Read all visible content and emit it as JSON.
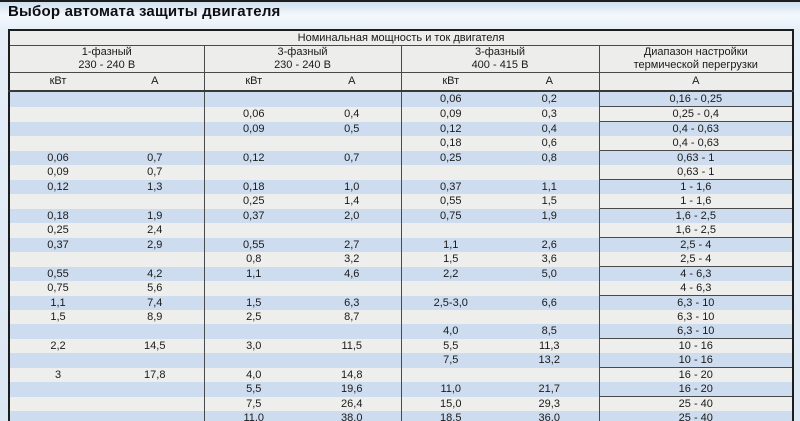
{
  "title": "Выбор автомата защиты двигателя",
  "table": {
    "top_header": "Номинальная мощность и ток двигателя",
    "groups": [
      {
        "label": "1-фазный",
        "voltage": "230 - 240 В"
      },
      {
        "label": "3-фазный",
        "voltage": "230 - 240 В"
      },
      {
        "label": "3-фазный",
        "voltage": "400 - 415 В"
      }
    ],
    "range_header": {
      "line1": "Диапазон настройки",
      "line2": "термической перегрузки"
    },
    "units": {
      "power": "кВт",
      "current": "А",
      "range": "А"
    },
    "columns_per_group": [
      "кВт",
      "А"
    ],
    "rows": [
      [
        "",
        "",
        "",
        "",
        "0,06",
        "0,2",
        "0,16 - 0,25"
      ],
      [
        "",
        "",
        "0,06",
        "0,4",
        "0,09",
        "0,3",
        "0,25 - 0,4"
      ],
      [
        "",
        "",
        "0,09",
        "0,5",
        "0,12",
        "0,4",
        "0,4 - 0,63"
      ],
      [
        "",
        "",
        "",
        "",
        "0,18",
        "0,6",
        "0,4 - 0,63"
      ],
      [
        "0,06",
        "0,7",
        "0,12",
        "0,7",
        "0,25",
        "0,8",
        "0,63 - 1"
      ],
      [
        "0,09",
        "0,7",
        "",
        "",
        "",
        "",
        "0,63 - 1"
      ],
      [
        "0,12",
        "1,3",
        "0,18",
        "1,0",
        "0,37",
        "1,1",
        "1 - 1,6"
      ],
      [
        "",
        "",
        "0,25",
        "1,4",
        "0,55",
        "1,5",
        "1 - 1,6"
      ],
      [
        "0,18",
        "1,9",
        "0,37",
        "2,0",
        "0,75",
        "1,9",
        "1,6 - 2,5"
      ],
      [
        "0,25",
        "2,4",
        "",
        "",
        "",
        "",
        "1,6 - 2,5"
      ],
      [
        "0,37",
        "2,9",
        "0,55",
        "2,7",
        "1,1",
        "2,6",
        "2,5 - 4"
      ],
      [
        "",
        "",
        "0,8",
        "3,2",
        "1,5",
        "3,6",
        "2,5 - 4"
      ],
      [
        "0,55",
        "4,2",
        "1,1",
        "4,6",
        "2,2",
        "5,0",
        "4 - 6,3"
      ],
      [
        "0,75",
        "5,6",
        "",
        "",
        "",
        "",
        "4 - 6,3"
      ],
      [
        "1,1",
        "7,4",
        "1,5",
        "6,3",
        "2,5-3,0",
        "6,6",
        "6,3 - 10"
      ],
      [
        "1,5",
        "8,9",
        "2,5",
        "8,7",
        "",
        "",
        "6,3 - 10"
      ],
      [
        "",
        "",
        "",
        "",
        "4,0",
        "8,5",
        "6,3 - 10"
      ],
      [
        "2,2",
        "14,5",
        "3,0",
        "11,5",
        "5,5",
        "11,3",
        "10 - 16"
      ],
      [
        "",
        "",
        "",
        "",
        "7,5",
        "13,2",
        "10 - 16"
      ],
      [
        "3",
        "17,8",
        "4,0",
        "14,8",
        "",
        "",
        "16 - 20"
      ],
      [
        "",
        "",
        "5,5",
        "19,6",
        "11,0",
        "21,7",
        "16 - 20"
      ],
      [
        "",
        "",
        "7,5",
        "26,4",
        "15,0",
        "29,3",
        "25 - 40"
      ],
      [
        "",
        "",
        "11,0",
        "38,0",
        "18,5",
        "36,0",
        "25 - 40"
      ]
    ],
    "range_separator_after_rows": [
      1,
      2,
      4,
      6,
      8,
      10,
      12,
      14,
      17,
      19,
      21
    ]
  },
  "colors": {
    "stripe_blue": "#cddcee",
    "stripe_white": "#eeeeec",
    "header_bg": "#ededeb",
    "grid_line": "#4a4a4a",
    "dark_line": "#1d1d1d",
    "page_bg": "#dbe7f3",
    "title_color": "#0d0d14",
    "text_color": "#1a1a1a"
  }
}
